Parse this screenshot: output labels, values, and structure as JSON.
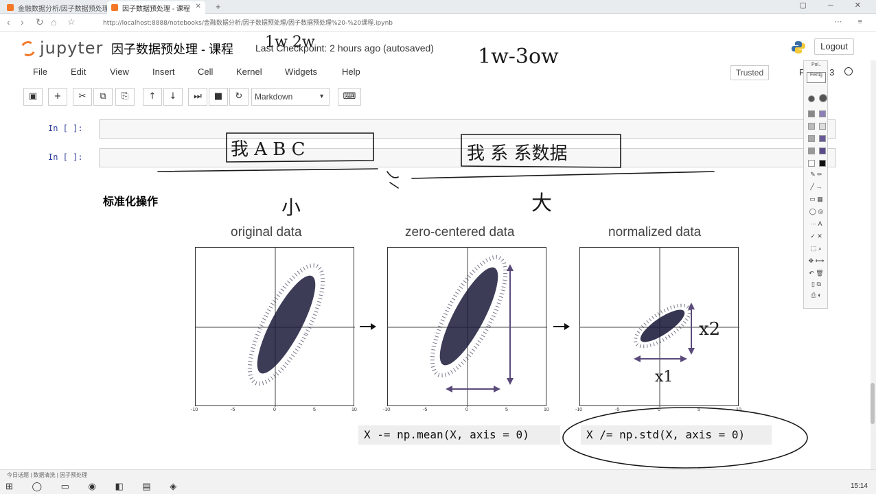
{
  "browser": {
    "tabs": [
      {
        "label": "金融数据分析/因子数据预处理/",
        "active": false
      },
      {
        "label": "因子数据预处理 - 课程",
        "active": true
      }
    ],
    "url": "http://localhost:8888/notebooks/金融数据分析/因子数据预处理/因子数据预处理%20-%20课程.ipynb"
  },
  "header": {
    "logo_text": "jupyter",
    "notebook_title": "因子数据预处理 - 课程",
    "checkpoint": "Last Checkpoint: 2 hours ago (autosaved)",
    "logout_label": "Logout"
  },
  "menubar": {
    "items": [
      "File",
      "Edit",
      "View",
      "Insert",
      "Cell",
      "Kernel",
      "Widgets",
      "Help"
    ],
    "trusted_label": "Trusted",
    "kernel_label": "Python 3"
  },
  "toolbar": {
    "cell_type": "Markdown"
  },
  "cells": [
    {
      "prompt": "In  [  ]:"
    },
    {
      "prompt": "In  [  ]:"
    }
  ],
  "markdown": {
    "heading": "标准化操作"
  },
  "figure": {
    "panels": [
      {
        "title": "original data"
      },
      {
        "title": "zero-centered data"
      },
      {
        "title": "normalized data"
      }
    ],
    "tick_labels": [
      "-10",
      "-5",
      "0",
      "5",
      "10"
    ],
    "code": [
      "X -= np.mean(X, axis = 0)",
      "X /= np.std(X, axis = 0)"
    ]
  },
  "annotations": {
    "handwriting": [
      "1w 2w",
      "1w-3ow",
      "我 A B C",
      "我 系 系数据",
      "小",
      "大",
      "x2",
      "x1"
    ]
  },
  "side_panel": {
    "labels": [
      "Pol..",
      "Fertig"
    ]
  },
  "taskbar": {
    "status": "今日话题  | 数据清洗 | 因子预处理",
    "time": "15:14"
  },
  "colors": {
    "jupyter_orange": "#f37726",
    "ink": "#1a1a1a",
    "arrow_purple": "#5a4a7a"
  }
}
